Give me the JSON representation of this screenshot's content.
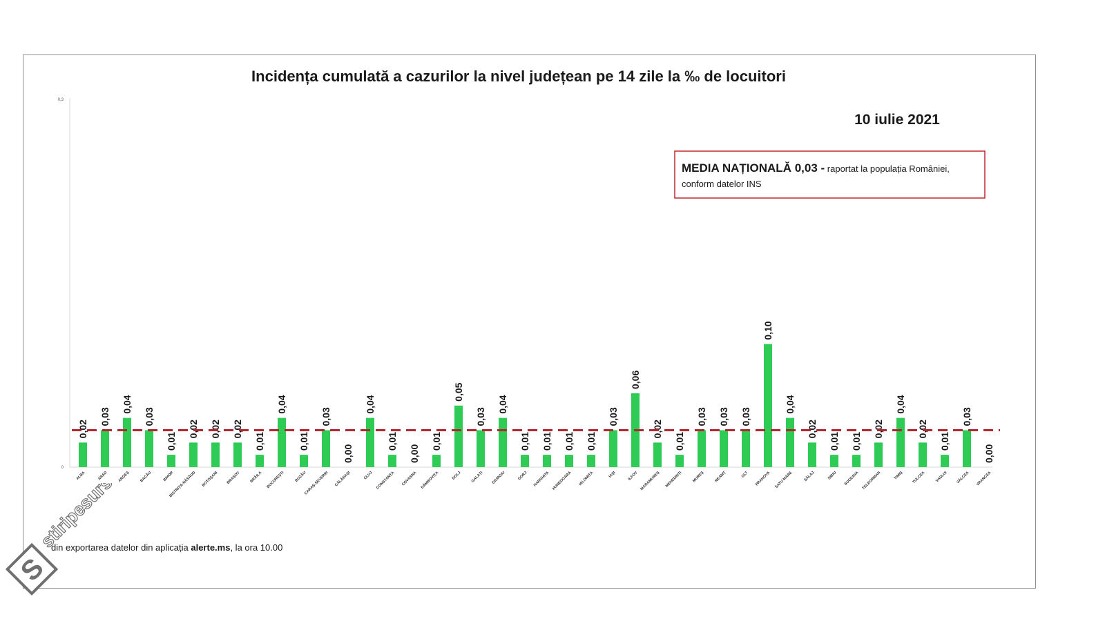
{
  "chart_data": {
    "type": "bar",
    "title": "Incidența cumulată a cazurilor la nivel județean pe 14 zile  la ‰ de locuitori",
    "date": "10 iulie 2021",
    "legend_box": {
      "bold": "MEDIA NAȚIONALĂ 0,03 -",
      "line1": " raportat la populația României,",
      "line2": "conform datelor INS",
      "border_color": "#c0282d"
    },
    "footnote": {
      "prefix": "din exportarea datelor din aplicația ",
      "bold": "alerte.ms",
      "suffix": ", la ora 10.00"
    },
    "ylim": [
      0,
      0.3
    ],
    "y_ticks": [
      "0",
      "0,3"
    ],
    "reference_line": {
      "value": 0.03,
      "color": "#b3262d",
      "style": "dashed"
    },
    "bar_color": "#2ecc55",
    "grid": false,
    "categories": [
      "ALBA",
      "ARAD",
      "ARGEȘ",
      "BACĂU",
      "BIHOR",
      "BISTRIȚA-NĂSĂUD",
      "BOTOȘANI",
      "BRAȘOV",
      "BRĂILA",
      "BUCUREȘTI",
      "BUZĂU",
      "CARAȘ-SEVERIN",
      "CĂLĂRAȘI",
      "CLUJ",
      "CONSTANȚA",
      "COVASNA",
      "DÂMBOVIȚA",
      "DOLJ",
      "GALAȚI",
      "GIURGIU",
      "GORJ",
      "HARGHITA",
      "HUNEDOARA",
      "IALOMIȚA",
      "IAȘI",
      "ILFOV",
      "MARAMUREȘ",
      "MEHEDINȚI",
      "MUREȘ",
      "NEAMȚ",
      "OLT",
      "PRAHOVA",
      "SATU MARE",
      "SĂLAJ",
      "SIBIU",
      "SUCEAVA",
      "TELEORMAN",
      "TIMIȘ",
      "TULCEA",
      "VASLUI",
      "VÂLCEA",
      "VRANCEA"
    ],
    "values": [
      0.02,
      0.03,
      0.04,
      0.03,
      0.01,
      0.02,
      0.02,
      0.02,
      0.01,
      0.04,
      0.01,
      0.03,
      0.0,
      0.04,
      0.01,
      0.0,
      0.01,
      0.05,
      0.03,
      0.04,
      0.01,
      0.01,
      0.01,
      0.01,
      0.03,
      0.06,
      0.02,
      0.01,
      0.03,
      0.03,
      0.03,
      0.1,
      0.04,
      0.02,
      0.01,
      0.01,
      0.02,
      0.04,
      0.02,
      0.01,
      0.03,
      0.0
    ],
    "labels": [
      "0,02",
      "0,03",
      "0,04",
      "0,03",
      "0,01",
      "0,02",
      "0,02",
      "0,02",
      "0,01",
      "0,04",
      "0,01",
      "0,03",
      "0,00",
      "0,04",
      "0,01",
      "0,00",
      "0,01",
      "0,05",
      "0,03",
      "0,04",
      "0,01",
      "0,01",
      "0,01",
      "0,01",
      "0,03",
      "0,06",
      "0,02",
      "0,01",
      "0,03",
      "0,03",
      "0,03",
      "0,10",
      "0,04",
      "0,02",
      "0,01",
      "0,01",
      "0,02",
      "0,04",
      "0,02",
      "0,01",
      "0,03",
      "0,00"
    ]
  },
  "watermark": {
    "text": "stiripesurse.ro",
    "letter": "S"
  }
}
